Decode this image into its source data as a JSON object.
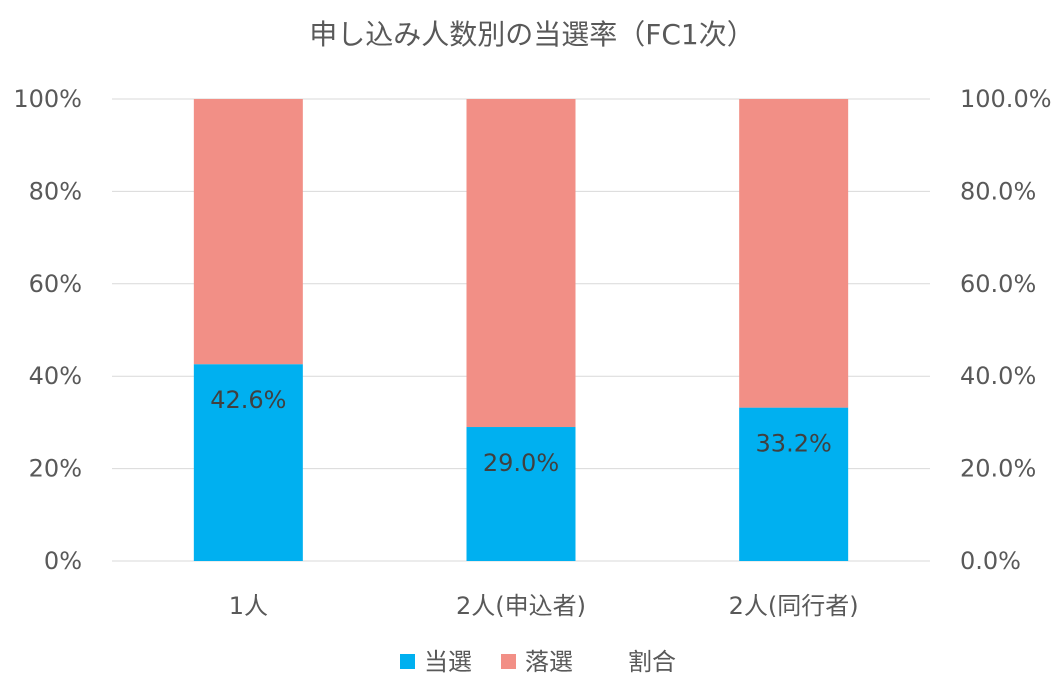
{
  "chart_data": {
    "type": "bar",
    "stacked": true,
    "title": "申し込み人数別の当選率（FC1次）",
    "categories": [
      "1人",
      "2人(申込者)",
      "2人(同行者)"
    ],
    "series": [
      {
        "name": "当選",
        "values": [
          42.6,
          29.0,
          33.2
        ],
        "color": "#00b0f0"
      },
      {
        "name": "落選",
        "values": [
          57.4,
          71.0,
          66.8
        ],
        "color": "#f28f86"
      }
    ],
    "ratio_series": {
      "name": "割合",
      "values": [
        42.6,
        29.0,
        33.2
      ]
    },
    "data_labels": [
      "42.6%",
      "29.0%",
      "33.2%"
    ],
    "y_left": {
      "ylim": [
        0,
        100
      ],
      "ticks": [
        "0%",
        "20%",
        "40%",
        "60%",
        "80%",
        "100%"
      ]
    },
    "y_right": {
      "ylim": [
        0,
        100
      ],
      "ticks": [
        "0.0%",
        "20.0%",
        "40.0%",
        "60.0%",
        "80.0%",
        "100.0%"
      ]
    },
    "grid": true,
    "legend_position": "bottom"
  }
}
